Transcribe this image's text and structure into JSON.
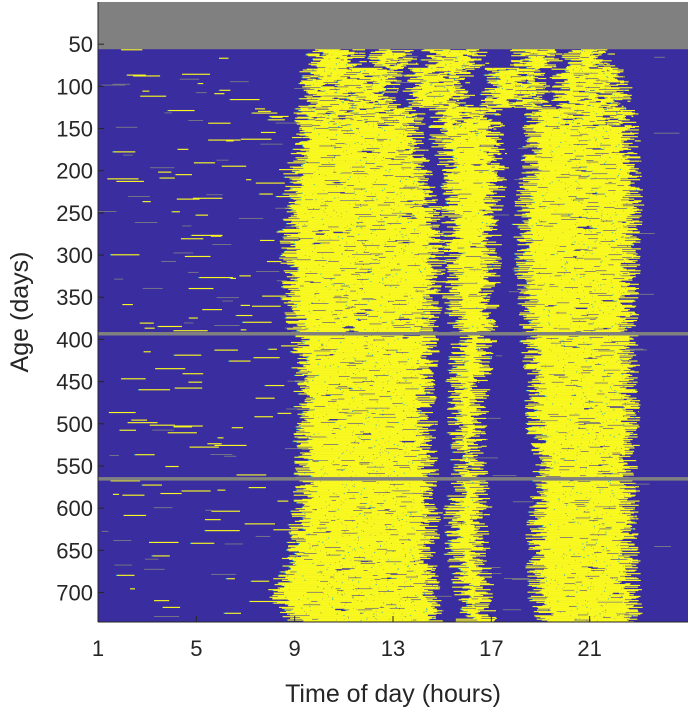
{
  "chart_data": {
    "type": "heatmap",
    "title": "",
    "xlabel": "Time of day (hours)",
    "ylabel": "Age (days)",
    "x_ticks": [
      1,
      5,
      9,
      13,
      17,
      21
    ],
    "y_ticks": [
      50,
      100,
      150,
      200,
      250,
      300,
      350,
      400,
      450,
      500,
      550,
      600,
      650,
      700
    ],
    "xlim": [
      1,
      25
    ],
    "ylim": [
      0,
      735
    ],
    "y_direction": "reversed",
    "grid": false,
    "legend": "none",
    "first_recorded_age": 56,
    "missing_rows": [
      393,
      565
    ],
    "colors": {
      "inactive": "#3a2da0",
      "active": "#f9f920",
      "missing": "#808080",
      "transition": "#27b5c8",
      "axis": "#262626"
    },
    "activity_bands": [
      {
        "age": 56,
        "windows": [
          [
            9.8,
            11.5
          ],
          [
            12.3,
            13.6
          ],
          [
            14.6,
            16.5
          ],
          [
            18.2,
            19.5
          ],
          [
            20.3,
            21.6
          ]
        ]
      },
      {
        "age": 100,
        "windows": [
          [
            9.6,
            13.0
          ],
          [
            13.8,
            15.9
          ],
          [
            17.0,
            19.0
          ],
          [
            19.8,
            22.3
          ]
        ]
      },
      {
        "age": 150,
        "windows": [
          [
            9.4,
            13.9
          ],
          [
            14.8,
            17.1
          ],
          [
            18.7,
            22.6
          ]
        ]
      },
      {
        "age": 200,
        "windows": [
          [
            9.0,
            14.2
          ],
          [
            15.3,
            17.3
          ],
          [
            18.6,
            22.7
          ]
        ]
      },
      {
        "age": 250,
        "windows": [
          [
            8.8,
            14.7
          ],
          [
            15.4,
            17.0
          ],
          [
            18.3,
            22.8
          ]
        ]
      },
      {
        "age": 300,
        "windows": [
          [
            8.8,
            14.8
          ],
          [
            15.5,
            17.0
          ],
          [
            18.3,
            22.7
          ]
        ]
      },
      {
        "age": 350,
        "windows": [
          [
            8.9,
            14.6
          ],
          [
            15.4,
            16.9
          ],
          [
            18.5,
            22.6
          ]
        ]
      },
      {
        "age": 400,
        "windows": [
          [
            9.2,
            14.5
          ],
          [
            15.8,
            16.8
          ],
          [
            18.6,
            22.6
          ]
        ]
      },
      {
        "age": 450,
        "windows": [
          [
            9.4,
            14.3
          ],
          [
            15.6,
            16.6
          ],
          [
            18.8,
            22.6
          ]
        ]
      },
      {
        "age": 500,
        "windows": [
          [
            9.4,
            14.4
          ],
          [
            15.6,
            16.4
          ],
          [
            18.8,
            22.7
          ]
        ]
      },
      {
        "age": 550,
        "windows": [
          [
            9.4,
            14.4
          ],
          [
            15.8,
            16.4
          ],
          [
            19.1,
            22.6
          ]
        ]
      },
      {
        "age": 600,
        "windows": [
          [
            9.3,
            14.6
          ],
          [
            15.5,
            16.6
          ],
          [
            18.9,
            22.6
          ]
        ]
      },
      {
        "age": 650,
        "windows": [
          [
            9.0,
            14.4
          ],
          [
            15.5,
            16.5
          ],
          [
            18.8,
            22.6
          ]
        ]
      },
      {
        "age": 700,
        "windows": [
          [
            8.3,
            14.6
          ],
          [
            15.9,
            16.7
          ],
          [
            18.9,
            22.7
          ]
        ]
      },
      {
        "age": 735,
        "windows": [
          [
            9.0,
            14.7
          ],
          [
            16.0,
            16.8
          ],
          [
            19.2,
            22.8
          ]
        ]
      }
    ]
  }
}
